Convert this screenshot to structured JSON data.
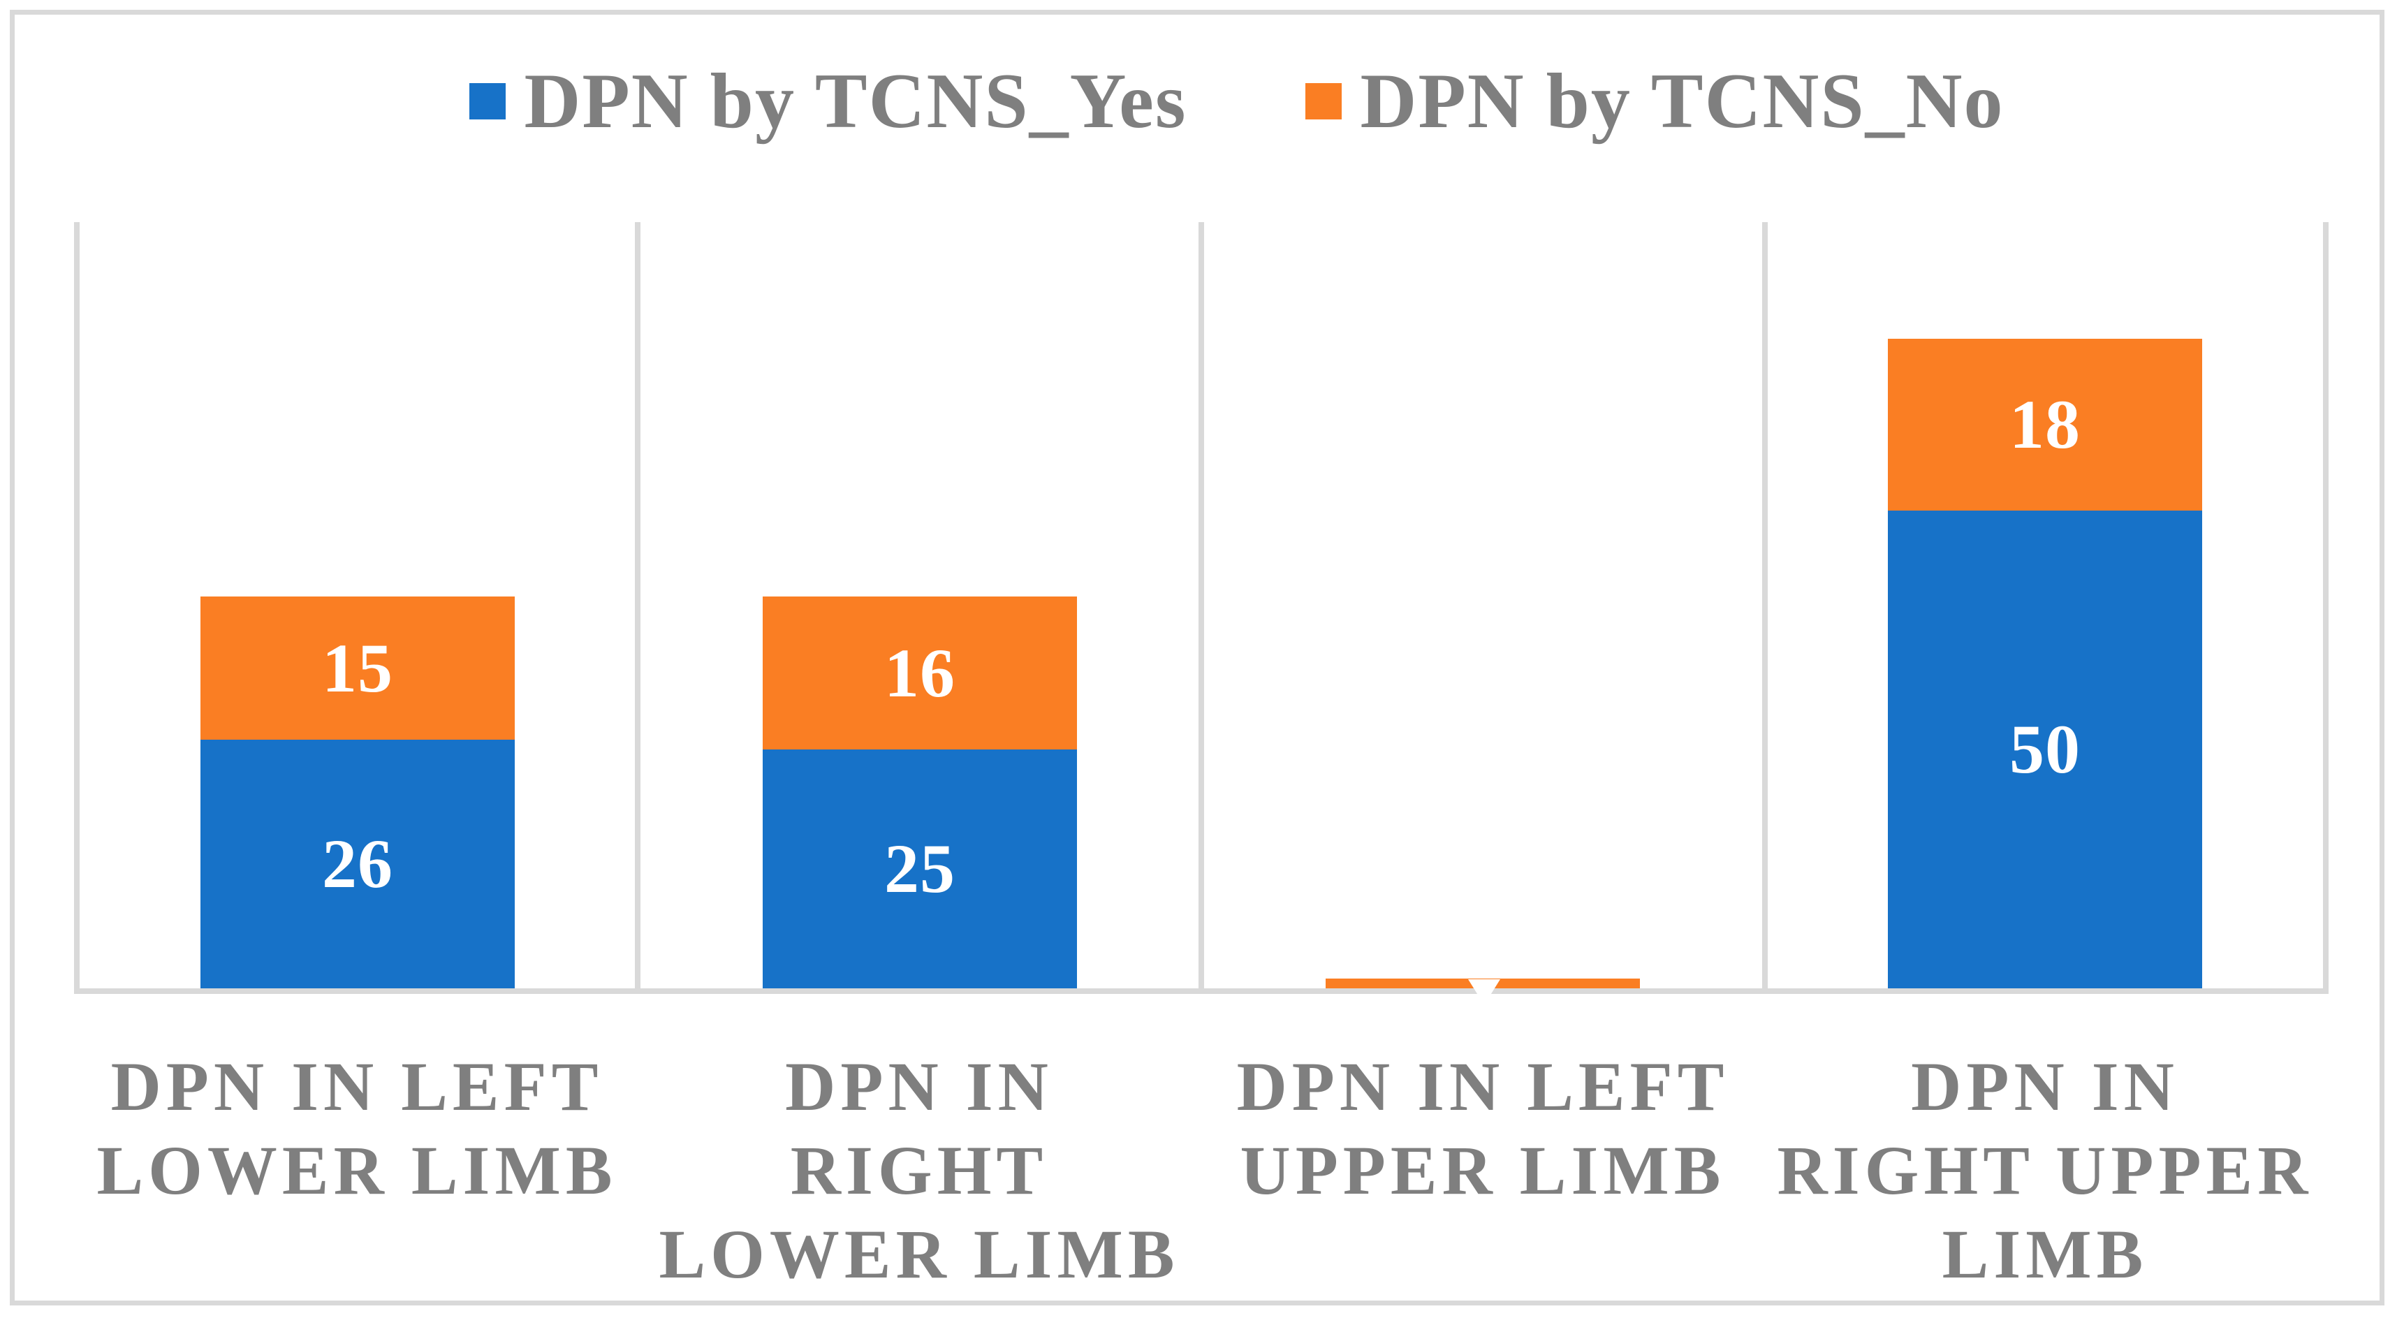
{
  "legend": {
    "items": [
      {
        "label": "DPN by TCNS_Yes",
        "color": "#1772c8"
      },
      {
        "label": "DPN by TCNS_No",
        "color": "#fa7e23"
      }
    ],
    "position": "top"
  },
  "chart_data": {
    "type": "bar",
    "stacked": true,
    "title": "",
    "xlabel": "",
    "ylabel": "",
    "categories": [
      "DPN IN LEFT\nLOWER LIMB",
      "DPN IN\nRIGHT\nLOWER LIMB",
      "DPN IN LEFT\nUPPER LIMB",
      "DPN IN\nRIGHT UPPER\nLIMB"
    ],
    "series": [
      {
        "name": "DPN by TCNS_Yes",
        "color": "#1772c8",
        "values": [
          26,
          25,
          0,
          50
        ]
      },
      {
        "name": "DPN by TCNS_No",
        "color": "#fa7e23",
        "values": [
          15,
          16,
          1,
          18
        ]
      }
    ],
    "data_label_color": "#ffffff",
    "value_axis": {
      "min": 0,
      "max": 80,
      "visible": false
    },
    "gridlines": "vertical-category-separators",
    "gridline_color": "#d9d9d9",
    "frame_color": "#d9d9d9",
    "legend_position": "top"
  }
}
